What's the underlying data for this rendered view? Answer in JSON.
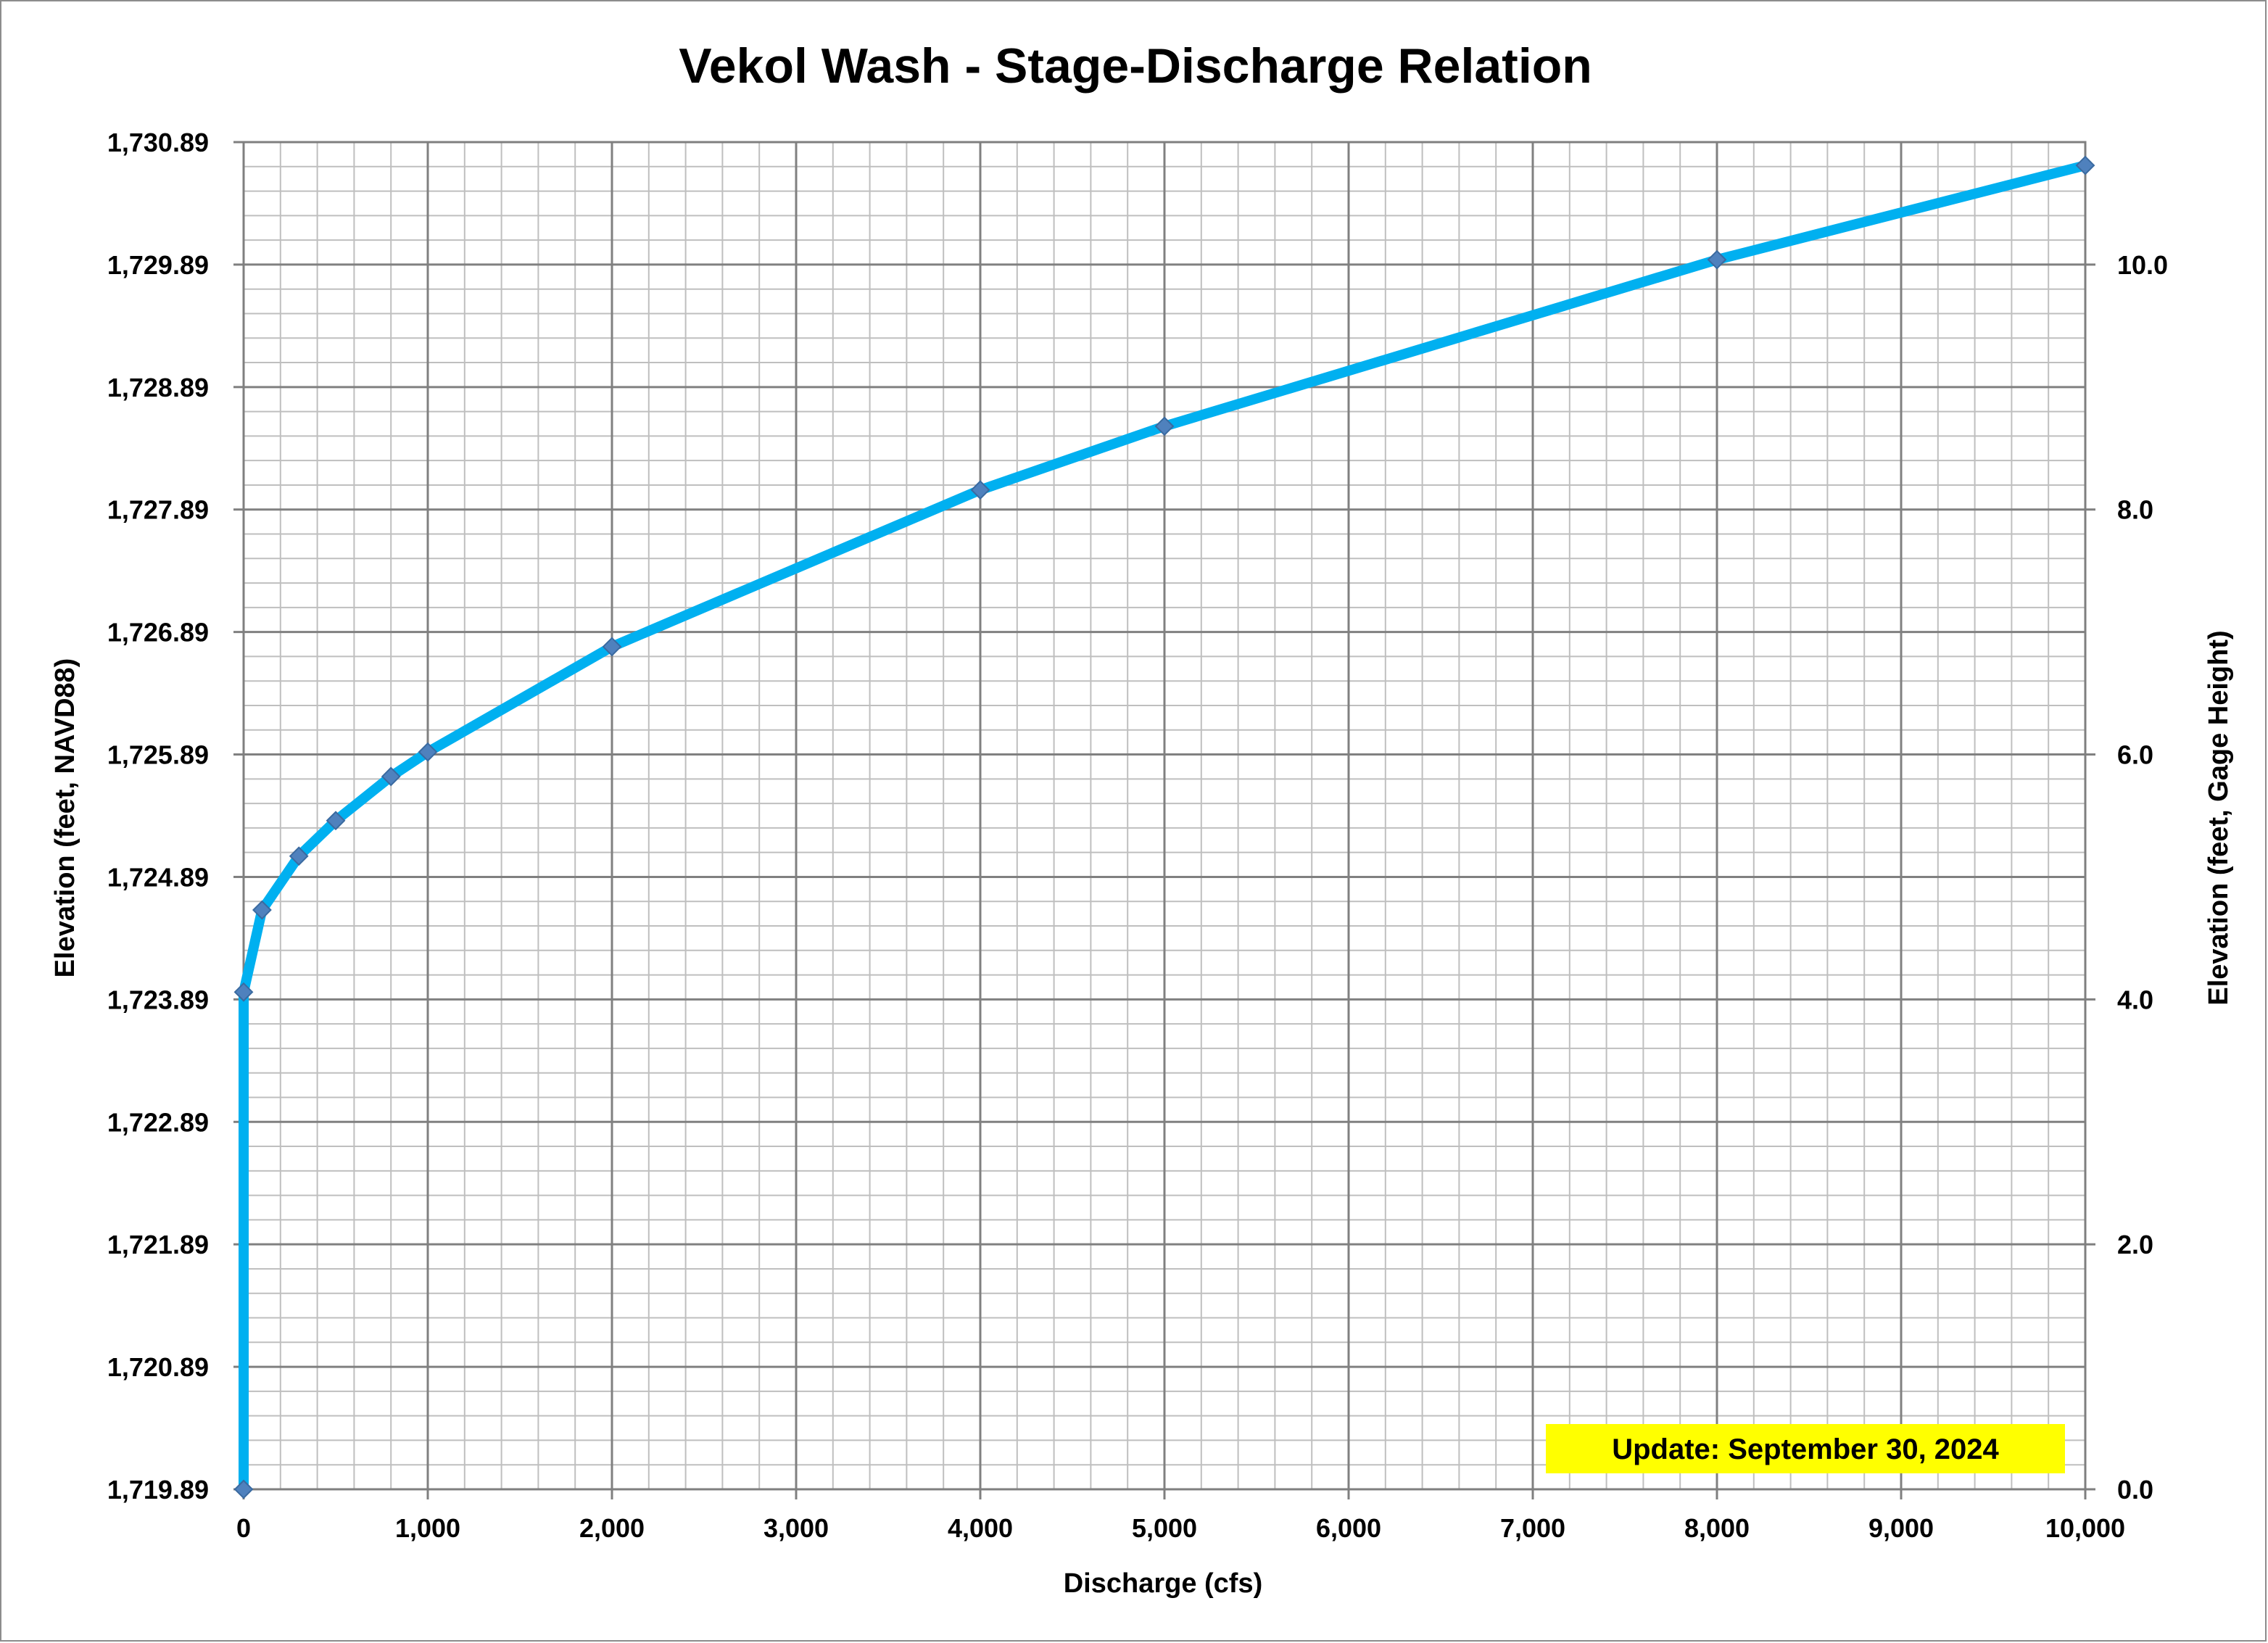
{
  "chart_data": {
    "type": "line",
    "title": "Vekol Wash - Stage-Discharge Relation",
    "xlabel": "Discharge (cfs)",
    "ylabel": "Elevation (feet, NAVD88)",
    "y2label": "Elevation (feet, Gage Height)",
    "xlim": [
      0,
      10000
    ],
    "ylim": [
      1719.89,
      1730.89
    ],
    "y2lim": [
      0,
      11
    ],
    "x_ticks": [
      "0",
      "1,000",
      "2,000",
      "3,000",
      "4,000",
      "5,000",
      "6,000",
      "7,000",
      "8,000",
      "9,000",
      "10,000"
    ],
    "x_tick_values": [
      0,
      1000,
      2000,
      3000,
      4000,
      5000,
      6000,
      7000,
      8000,
      9000,
      10000
    ],
    "y_ticks": [
      "1,719.89",
      "1,720.89",
      "1,721.89",
      "1,722.89",
      "1,723.89",
      "1,724.89",
      "1,725.89",
      "1,726.89",
      "1,727.89",
      "1,728.89",
      "1,729.89",
      "1,730.89"
    ],
    "y_tick_values": [
      1719.89,
      1720.89,
      1721.89,
      1722.89,
      1723.89,
      1724.89,
      1725.89,
      1726.89,
      1727.89,
      1728.89,
      1729.89,
      1730.89
    ],
    "y2_ticks": [
      "0.0",
      "2.0",
      "4.0",
      "6.0",
      "8.0",
      "10.0"
    ],
    "y2_tick_values": [
      0,
      2,
      4,
      6,
      8,
      10
    ],
    "grid": true,
    "minor_grid": true,
    "legend": "none",
    "annotation": "Update: September 30, 2024",
    "annotation_color": "#ffff00",
    "line_color": "#00b0f0",
    "marker_color": "#4f81bd",
    "grid_major_color": "#808080",
    "grid_minor_color": "#bfbfbf",
    "series": [
      {
        "x": [
          0,
          0,
          100,
          300,
          500,
          800,
          1000,
          2000,
          4000,
          5000,
          8000,
          10000
        ],
        "y": [
          1719.89,
          1723.95,
          1724.62,
          1725.06,
          1725.35,
          1725.71,
          1725.91,
          1726.77,
          1728.05,
          1728.57,
          1729.93,
          1730.7
        ]
      }
    ]
  }
}
